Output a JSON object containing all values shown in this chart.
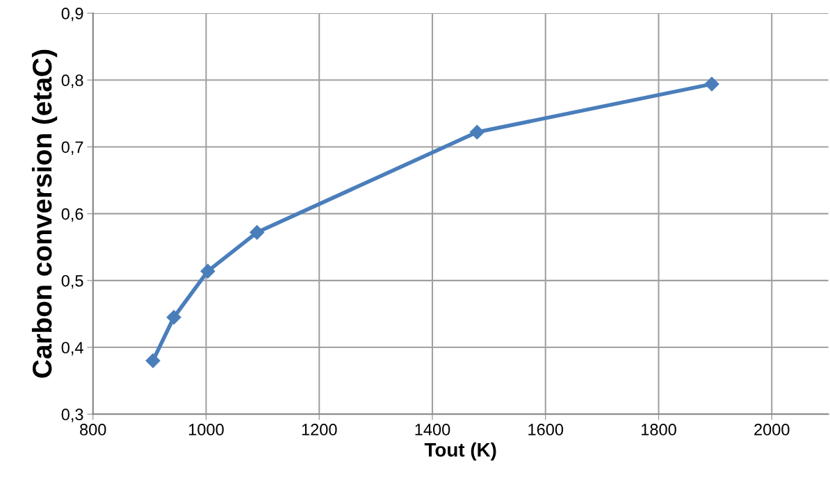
{
  "chart_data": {
    "type": "line",
    "xlabel": "Tout (K)",
    "ylabel": "Carbon conversion (etaC)",
    "x": [
      906,
      943,
      1003,
      1090,
      1479,
      1894
    ],
    "series": [
      {
        "color": "#4a7ebb",
        "values": [
          0.38,
          0.445,
          0.514,
          0.572,
          0.722,
          0.794
        ]
      }
    ],
    "xlim": [
      800,
      2100
    ],
    "xticks": [
      800,
      1000,
      1200,
      1400,
      1600,
      1800,
      2000
    ],
    "ylim": [
      0.3,
      0.9
    ],
    "yticks": [
      {
        "value": 0.3,
        "label": "0,3"
      },
      {
        "value": 0.4,
        "label": "0,4"
      },
      {
        "value": 0.5,
        "label": "0,5"
      },
      {
        "value": 0.6,
        "label": "0,6"
      },
      {
        "value": 0.7,
        "label": "0,7"
      },
      {
        "value": 0.8,
        "label": "0,8"
      },
      {
        "value": 0.9,
        "label": "0,9"
      }
    ],
    "grid": true,
    "marker": "diamond",
    "line_style": "solid",
    "legend": false
  }
}
